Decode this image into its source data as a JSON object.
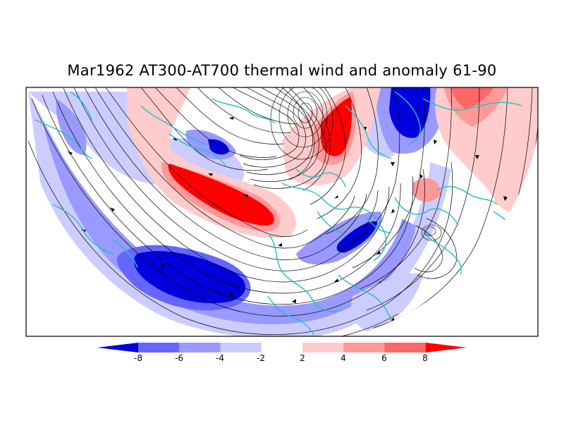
{
  "figure": {
    "title": "Mar1962 AT300-AT700 thermal wind and anomaly 61-90"
  },
  "colorbar": {
    "tick_labels": [
      "-8",
      "-6",
      "-4",
      "-2",
      "2",
      "4",
      "6",
      "8"
    ],
    "colors": [
      "#0000dd",
      "#6666ff",
      "#9999ff",
      "#ccccff",
      "#ffffff",
      "#ffcccc",
      "#ff9999",
      "#ff6666",
      "#ff0000"
    ]
  },
  "chart_data": {
    "type": "heatmap",
    "title": "Mar1962 AT300-AT700 thermal wind and anomaly 61-90",
    "levels": [
      -8,
      -6,
      -4,
      -2,
      2,
      4,
      6,
      8
    ],
    "colors": [
      "#0000dd",
      "#6666ff",
      "#9999ff",
      "#ccccff",
      "#ffffff",
      "#ffcccc",
      "#ff9999",
      "#ff6666",
      "#ff0000"
    ],
    "projection": "north-polar",
    "overlays": [
      "thermal wind streamlines",
      "coastlines"
    ]
  }
}
